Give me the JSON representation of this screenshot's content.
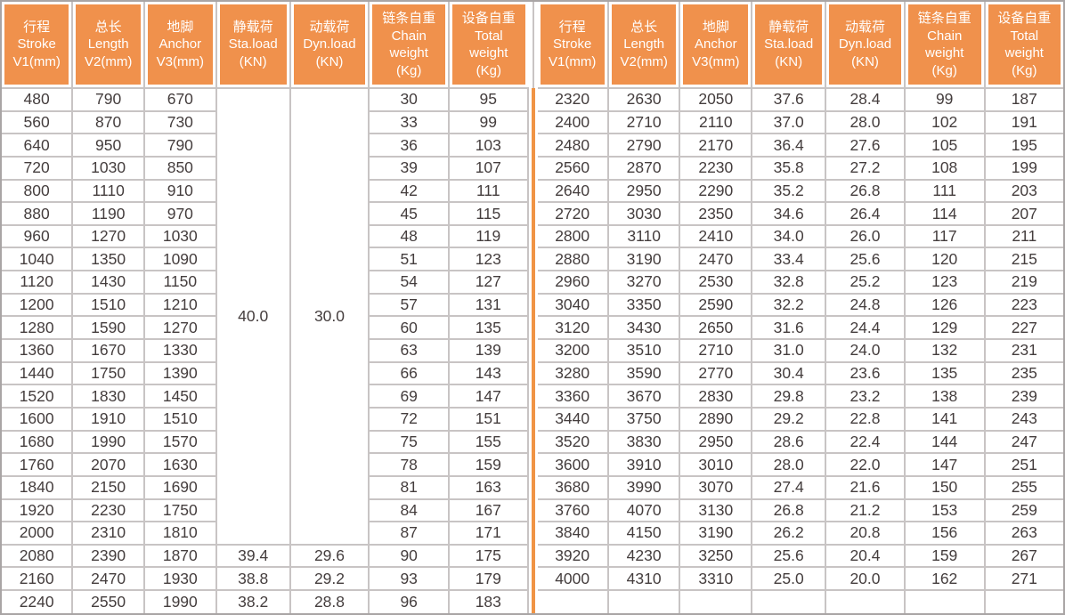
{
  "table": {
    "column_headers": [
      "行程\nStroke\nV1(mm)",
      "总长\nLength\nV2(mm)",
      "地脚\nAnchor\nV3(mm)",
      "静载荷\nSta.load\n(KN)",
      "动载荷\nDyn.load\n(KN)",
      "链条自重\nChain\nweight\n(Kg)",
      "设备自重\nTotal\nweight\n(Kg)"
    ],
    "left_half": {
      "merged_cells": {
        "row_span": 20,
        "sta_load": {
          "value": "40.0"
        },
        "dyn_load": {
          "value": "30.0"
        }
      },
      "rows": [
        [
          "480",
          "790",
          "670",
          null,
          null,
          "30",
          "95"
        ],
        [
          "560",
          "870",
          "730",
          null,
          null,
          "33",
          "99"
        ],
        [
          "640",
          "950",
          "790",
          null,
          null,
          "36",
          "103"
        ],
        [
          "720",
          "1030",
          "850",
          null,
          null,
          "39",
          "107"
        ],
        [
          "800",
          "1110",
          "910",
          null,
          null,
          "42",
          "111"
        ],
        [
          "880",
          "1190",
          "970",
          null,
          null,
          "45",
          "115"
        ],
        [
          "960",
          "1270",
          "1030",
          null,
          null,
          "48",
          "119"
        ],
        [
          "1040",
          "1350",
          "1090",
          null,
          null,
          "51",
          "123"
        ],
        [
          "1120",
          "1430",
          "1150",
          null,
          null,
          "54",
          "127"
        ],
        [
          "1200",
          "1510",
          "1210",
          null,
          null,
          "57",
          "131"
        ],
        [
          "1280",
          "1590",
          "1270",
          null,
          null,
          "60",
          "135"
        ],
        [
          "1360",
          "1670",
          "1330",
          null,
          null,
          "63",
          "139"
        ],
        [
          "1440",
          "1750",
          "1390",
          null,
          null,
          "66",
          "143"
        ],
        [
          "1520",
          "1830",
          "1450",
          null,
          null,
          "69",
          "147"
        ],
        [
          "1600",
          "1910",
          "1510",
          null,
          null,
          "72",
          "151"
        ],
        [
          "1680",
          "1990",
          "1570",
          null,
          null,
          "75",
          "155"
        ],
        [
          "1760",
          "2070",
          "1630",
          null,
          null,
          "78",
          "159"
        ],
        [
          "1840",
          "2150",
          "1690",
          null,
          null,
          "81",
          "163"
        ],
        [
          "1920",
          "2230",
          "1750",
          null,
          null,
          "84",
          "167"
        ],
        [
          "2000",
          "2310",
          "1810",
          null,
          null,
          "87",
          "171"
        ],
        [
          "2080",
          "2390",
          "1870",
          "39.4",
          "29.6",
          "90",
          "175"
        ],
        [
          "2160",
          "2470",
          "1930",
          "38.8",
          "29.2",
          "93",
          "179"
        ],
        [
          "2240",
          "2550",
          "1990",
          "38.2",
          "28.8",
          "96",
          "183"
        ]
      ]
    },
    "right_half": {
      "trailing_empty_row": true,
      "rows": [
        [
          "2320",
          "2630",
          "2050",
          "37.6",
          "28.4",
          "99",
          "187"
        ],
        [
          "2400",
          "2710",
          "2110",
          "37.0",
          "28.0",
          "102",
          "191"
        ],
        [
          "2480",
          "2790",
          "2170",
          "36.4",
          "27.6",
          "105",
          "195"
        ],
        [
          "2560",
          "2870",
          "2230",
          "35.8",
          "27.2",
          "108",
          "199"
        ],
        [
          "2640",
          "2950",
          "2290",
          "35.2",
          "26.8",
          "111",
          "203"
        ],
        [
          "2720",
          "3030",
          "2350",
          "34.6",
          "26.4",
          "114",
          "207"
        ],
        [
          "2800",
          "3110",
          "2410",
          "34.0",
          "26.0",
          "117",
          "211"
        ],
        [
          "2880",
          "3190",
          "2470",
          "33.4",
          "25.6",
          "120",
          "215"
        ],
        [
          "2960",
          "3270",
          "2530",
          "32.8",
          "25.2",
          "123",
          "219"
        ],
        [
          "3040",
          "3350",
          "2590",
          "32.2",
          "24.8",
          "126",
          "223"
        ],
        [
          "3120",
          "3430",
          "2650",
          "31.6",
          "24.4",
          "129",
          "227"
        ],
        [
          "3200",
          "3510",
          "2710",
          "31.0",
          "24.0",
          "132",
          "231"
        ],
        [
          "3280",
          "3590",
          "2770",
          "30.4",
          "23.6",
          "135",
          "235"
        ],
        [
          "3360",
          "3670",
          "2830",
          "29.8",
          "23.2",
          "138",
          "239"
        ],
        [
          "3440",
          "3750",
          "2890",
          "29.2",
          "22.8",
          "141",
          "243"
        ],
        [
          "3520",
          "3830",
          "2950",
          "28.6",
          "22.4",
          "144",
          "247"
        ],
        [
          "3600",
          "3910",
          "3010",
          "28.0",
          "22.0",
          "147",
          "251"
        ],
        [
          "3680",
          "3990",
          "3070",
          "27.4",
          "21.6",
          "150",
          "255"
        ],
        [
          "3760",
          "4070",
          "3130",
          "26.8",
          "21.2",
          "153",
          "259"
        ],
        [
          "3840",
          "4150",
          "3190",
          "26.2",
          "20.8",
          "156",
          "263"
        ],
        [
          "3920",
          "4230",
          "3250",
          "25.6",
          "20.4",
          "159",
          "267"
        ],
        [
          "4000",
          "4310",
          "3310",
          "25.0",
          "20.0",
          "162",
          "271"
        ]
      ]
    },
    "colors": {
      "header_bg": "#F0914C",
      "header_text": "#FFFFFF",
      "body_text": "#443D3D",
      "grid_line": "#C8C4C4",
      "outer_border": "#A9A5A5",
      "center_divider": "#F09445"
    }
  }
}
